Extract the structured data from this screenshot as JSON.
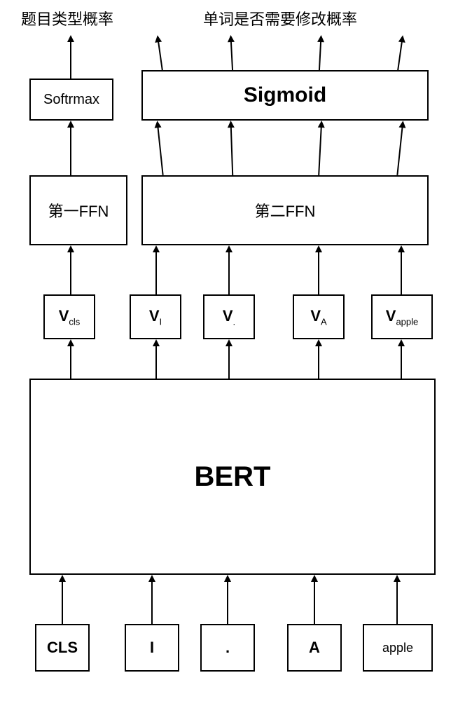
{
  "diagram": {
    "type": "flowchart",
    "background_color": "#ffffff",
    "border_color": "#000000",
    "arrow_color": "#000000",
    "top_labels": {
      "left": "题目类型概率",
      "right": "单词是否需要修改概率",
      "fontsize": 22
    },
    "activation_layer": {
      "softmax": {
        "label": "Softrmax",
        "fontsize": 20
      },
      "sigmoid": {
        "label": "Sigmoid",
        "fontsize": 30,
        "font_weight": "bold"
      }
    },
    "ffn_layer": {
      "ffn1": {
        "label": "第一FFN",
        "fontsize": 22
      },
      "ffn2": {
        "label": "第二FFN",
        "fontsize": 22
      }
    },
    "v_layer": {
      "prefix": "V",
      "subscripts": [
        "cls",
        "I",
        ".",
        "A",
        "apple"
      ],
      "fontsize": 22,
      "sub_fontsize": 13
    },
    "bert": {
      "label": "BERT",
      "fontsize": 40,
      "font_weight": "bold"
    },
    "token_layer": {
      "tokens": [
        "CLS",
        "I",
        ".",
        "A",
        "apple"
      ],
      "fontsize_main": 22,
      "fontsize_last": 18
    }
  }
}
